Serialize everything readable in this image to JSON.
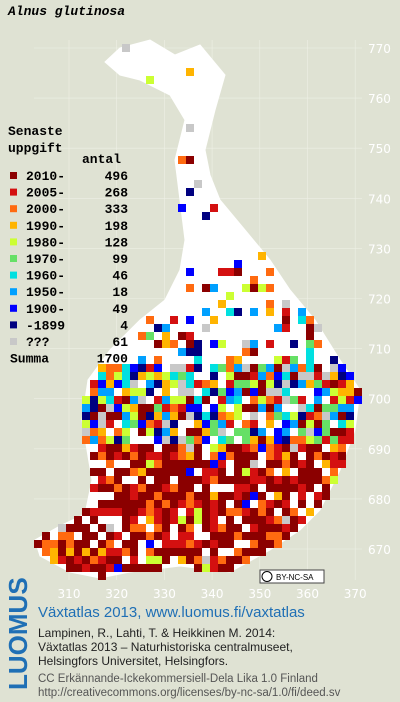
{
  "title": "Alnus glutinosa",
  "legend": {
    "heading": [
      "Senaste",
      "uppgift"
    ],
    "count_heading": "antal",
    "items": [
      {
        "label": "2010-",
        "count": 496,
        "color": "#8b0000"
      },
      {
        "label": "2005-",
        "count": 268,
        "color": "#d41010"
      },
      {
        "label": "2000-",
        "count": 333,
        "color": "#ff6a10"
      },
      {
        "label": "1990-",
        "count": 198,
        "color": "#ffb400"
      },
      {
        "label": "1980-",
        "count": 128,
        "color": "#ccff33"
      },
      {
        "label": "1970-",
        "count": 99,
        "color": "#66e066"
      },
      {
        "label": "1960-",
        "count": 46,
        "color": "#00e0e0"
      },
      {
        "label": "1950-",
        "count": 18,
        "color": "#00a0ff"
      },
      {
        "label": "1900-",
        "count": 49,
        "color": "#0000ff"
      },
      {
        "label": "-1899",
        "count": 4,
        "color": "#000080"
      },
      {
        "label": "???",
        "count": 61,
        "color": "#c8c8c8"
      }
    ],
    "total_label": "Summa",
    "total": 1700
  },
  "grid_labels": {
    "north": [
      "770",
      "760",
      "750",
      "740",
      "730",
      "720",
      "710",
      "700",
      "690",
      "680",
      "670"
    ],
    "east": [
      "310",
      "320",
      "330",
      "340",
      "350",
      "360",
      "370"
    ]
  },
  "badge": "BY-NC-SA",
  "logo": "LUOMUS",
  "footer": {
    "link": "Växtatlas 2013, www.luomus.fi/vaxtatlas",
    "citation": [
      "Lampinen, R., Lahti, T. & Heikkinen M. 2014:",
      "Växtatlas 2013 – Naturhistoriska centralmuseet,",
      "Helsingfors Universitet, Helsingfors."
    ],
    "license": [
      "CC Erkännande-Ickekommersiell-Dela Lika 1.0 Finland",
      "http://creativecommons.org/licenses/by-nc-sa/1.0/fi/deed.sv"
    ]
  }
}
